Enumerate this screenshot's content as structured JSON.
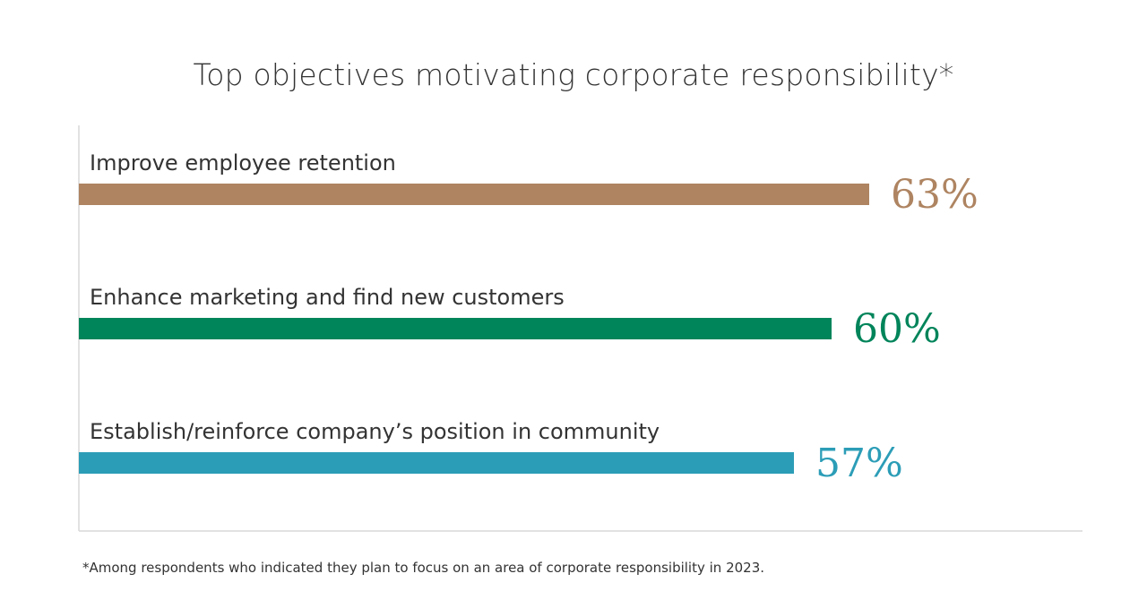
{
  "chart_data": {
    "type": "bar",
    "orientation": "horizontal",
    "title": "Top objectives motivating corporate responsibility*",
    "categories": [
      "Improve employee retention",
      "Enhance marketing and find new customers",
      "Establish/reinforce company’s position in community"
    ],
    "values": [
      63,
      60,
      57
    ],
    "value_labels": [
      "63%",
      "60%",
      "57%"
    ],
    "colors": [
      "#ae8461",
      "#00845a",
      "#2c9db7"
    ],
    "xlim": [
      0,
      100
    ],
    "grid": false,
    "legend": "none",
    "footnote": "*Among respondents who indicated they plan to focus on an area of corporate responsibility in 2023."
  }
}
